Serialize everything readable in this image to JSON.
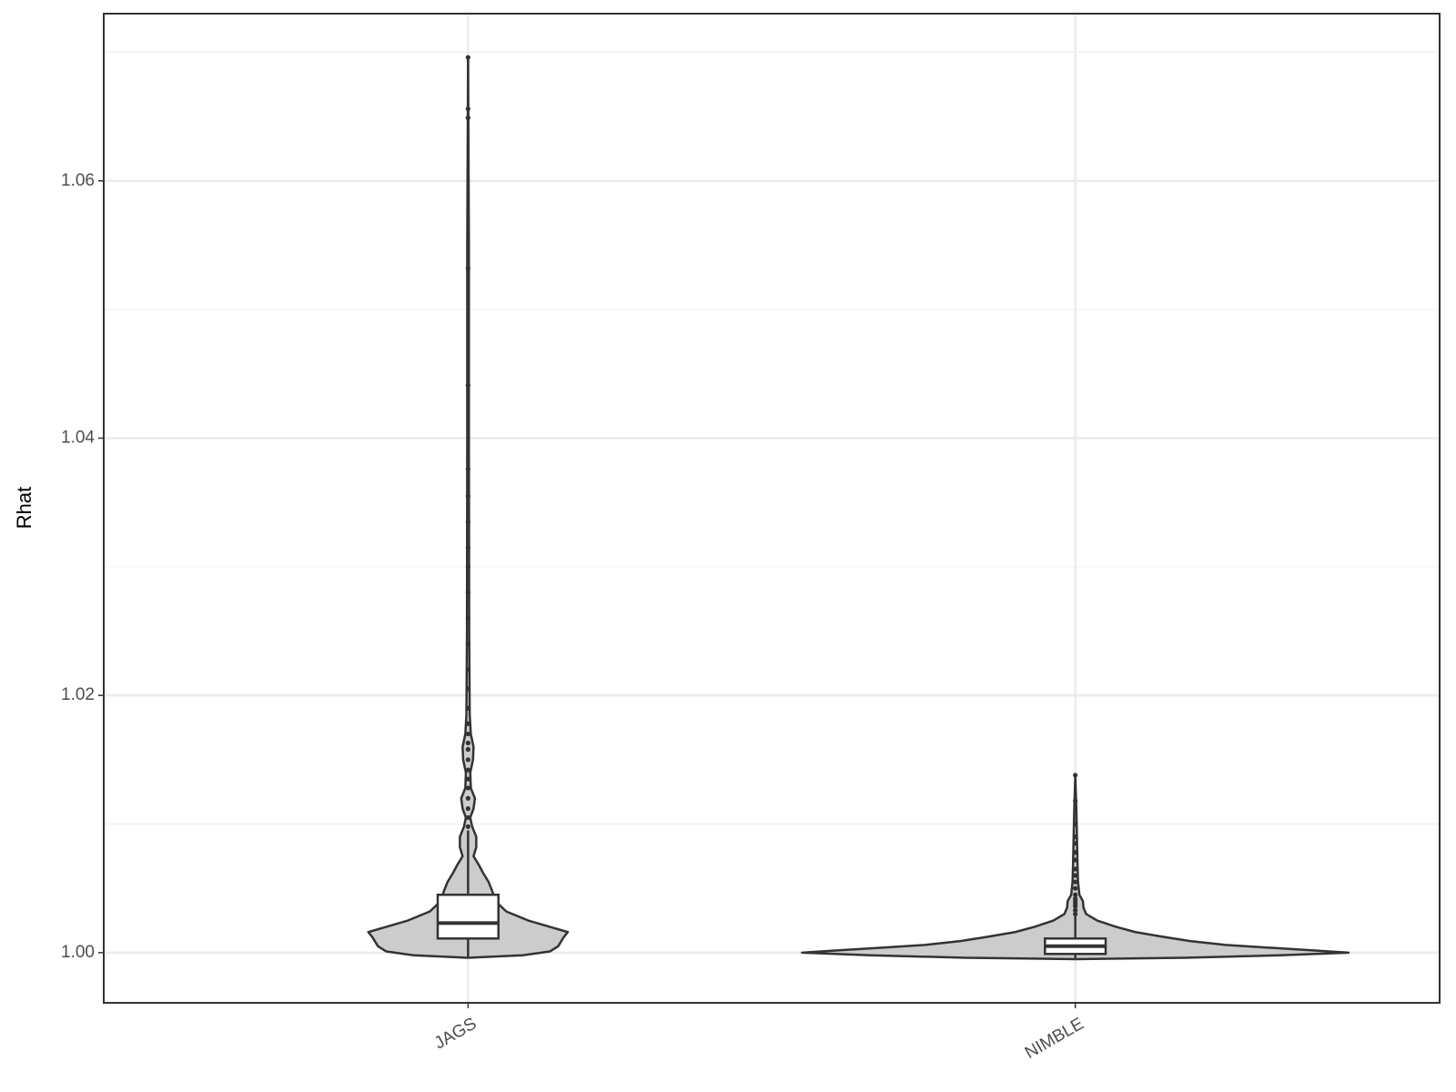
{
  "chart_data": {
    "type": "violin",
    "y_label": "Rhat",
    "categories": [
      "JAGS",
      "NIMBLE"
    ],
    "ylim": [
      0.9961,
      1.073
    ],
    "yticks": [
      {
        "value": 1,
        "label": "1.00"
      },
      1.02,
      1.04,
      1.06
    ],
    "minor_yticks": [
      1.01,
      1.03,
      1.05,
      1.07
    ],
    "grid": true,
    "fill": "#cccccc",
    "line_color": "#333333",
    "groups": [
      {
        "density_y": [
          0.9996,
          0.9998,
          1.0001,
          1.0005,
          1.0012,
          1.0016,
          1.002,
          1.0025,
          1.0032,
          1.004,
          1.0047,
          1.0055,
          1.0062,
          1.0068,
          1.0075,
          1.0082,
          1.009,
          1.0098,
          1.0105,
          1.0112,
          1.012,
          1.0128,
          1.014,
          1.015,
          1.016,
          1.017,
          1.0185,
          1.025,
          1.04,
          1.055,
          1.0696
        ],
        "density_width": [
          0,
          0.2,
          0.3,
          0.33,
          0.35,
          0.365,
          0.3,
          0.22,
          0.14,
          0.1,
          0.09,
          0.075,
          0.055,
          0.04,
          0.02,
          0.03,
          0.03,
          0.015,
          0.008,
          0.02,
          0.025,
          0.01,
          0.008,
          0.018,
          0.02,
          0.01,
          0.006,
          0.004,
          0.003,
          0.003,
          0
        ],
        "box": {
          "whisker_low": 0.9996,
          "q1": 1.0011,
          "median": 1.0023,
          "q3": 1.0045,
          "whisker_high": 1.0095
        },
        "outliers": [
          1.0098,
          1.0105,
          1.0112,
          1.012,
          1.0128,
          1.0135,
          1.0142,
          1.015,
          1.0158,
          1.0163,
          1.017,
          1.0178,
          1.019,
          1.0205,
          1.022,
          1.024,
          1.026,
          1.028,
          1.03,
          1.0315,
          1.0335,
          1.0355,
          1.0376,
          1.0441,
          1.0532,
          1.0649,
          1.0656,
          1.0696
        ]
      },
      {
        "density_y": [
          0.9995,
          0.9996,
          0.9998,
          1.0,
          1.0002,
          1.0004,
          1.0006,
          1.0009,
          1.0012,
          1.0016,
          1.002,
          1.0025,
          1.003,
          1.0035,
          1.004,
          1.0045,
          1.0055,
          1.007,
          1.009,
          1.011,
          1.0138
        ],
        "density_width": [
          0,
          0.4,
          0.75,
          1.0,
          0.85,
          0.7,
          0.55,
          0.42,
          0.33,
          0.22,
          0.15,
          0.08,
          0.04,
          0.03,
          0.028,
          0.015,
          0.01,
          0.008,
          0.006,
          0.004,
          0
        ],
        "box": {
          "whisker_low": 0.9995,
          "q1": 0.9999,
          "median": 1.0005,
          "q3": 1.0011,
          "whisker_high": 1.0029
        },
        "outliers": [
          1.003,
          1.0033,
          1.0036,
          1.0038,
          1.004,
          1.0042,
          1.0045,
          1.005,
          1.0055,
          1.006,
          1.0065,
          1.0072,
          1.0078,
          1.0085,
          1.009,
          1.01,
          1.0118,
          1.0138
        ]
      }
    ]
  }
}
